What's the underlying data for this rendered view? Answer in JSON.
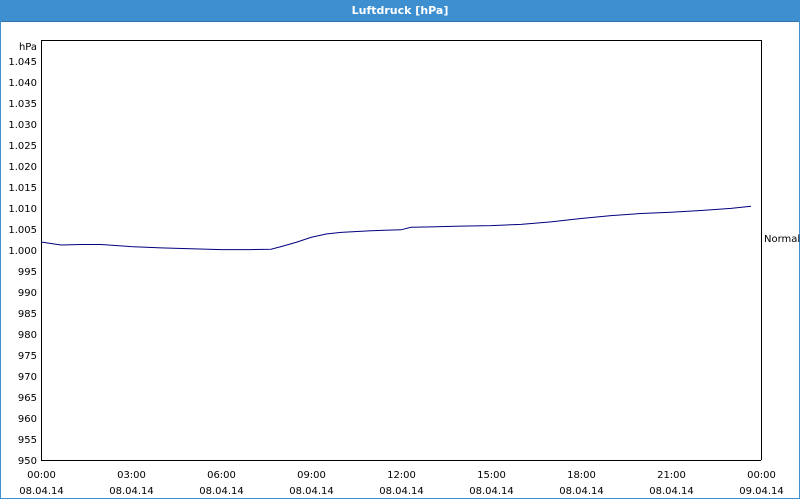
{
  "window": {
    "title": "Luftdruck [hPa]"
  },
  "chart_data": {
    "type": "line",
    "title": "Luftdruck [hPa]",
    "ylabel": "hPa",
    "ylim": [
      950,
      1045
    ],
    "yticks": [
      "950",
      "955",
      "960",
      "965",
      "970",
      "975",
      "980",
      "985",
      "990",
      "995",
      "1.000",
      "1.005",
      "1.010",
      "1.015",
      "1.020",
      "1.025",
      "1.030",
      "1.035",
      "1.040",
      "1.045"
    ],
    "xticks": [
      {
        "time": "00:00",
        "date": "08.04.14"
      },
      {
        "time": "03:00",
        "date": "08.04.14"
      },
      {
        "time": "06:00",
        "date": "08.04.14"
      },
      {
        "time": "09:00",
        "date": "08.04.14"
      },
      {
        "time": "12:00",
        "date": "08.04.14"
      },
      {
        "time": "15:00",
        "date": "08.04.14"
      },
      {
        "time": "18:00",
        "date": "08.04.14"
      },
      {
        "time": "21:00",
        "date": "08.04.14"
      },
      {
        "time": "00:00",
        "date": "09.04.14"
      }
    ],
    "grid": true,
    "reference_line": {
      "label": "Normal",
      "value": 1000.7
    },
    "series": [
      {
        "color": "#000080",
        "x": [
          "08.04.14 00:00",
          "08.04.14 00:40",
          "08.04.14 01:20",
          "08.04.14 02:00",
          "08.04.14 03:00",
          "08.04.14 04:00",
          "08.04.14 05:00",
          "08.04.14 06:00",
          "08.04.14 07:00",
          "08.04.14 07:40",
          "08.04.14 08:00",
          "08.04.14 08:30",
          "08.04.14 09:00",
          "08.04.14 09:30",
          "08.04.14 10:00",
          "08.04.14 11:00",
          "08.04.14 12:00",
          "08.04.14 12:20",
          "08.04.14 13:00",
          "08.04.14 14:00",
          "08.04.14 15:00",
          "08.04.14 16:00",
          "08.04.14 17:00",
          "08.04.14 18:00",
          "08.04.14 19:00",
          "08.04.14 20:00",
          "08.04.14 21:00",
          "08.04.14 22:00",
          "08.04.14 23:00",
          "08.04.14 23:40"
        ],
        "y": [
          1001.9,
          1001.2,
          1001.3,
          1001.3,
          1000.8,
          1000.5,
          1000.3,
          1000.1,
          1000.1,
          1000.2,
          1000.8,
          1001.8,
          1003.0,
          1003.8,
          1004.2,
          1004.6,
          1004.8,
          1005.4,
          1005.5,
          1005.7,
          1005.8,
          1006.1,
          1006.7,
          1007.5,
          1008.2,
          1008.7,
          1009.0,
          1009.4,
          1009.9,
          1010.4
        ]
      }
    ]
  }
}
